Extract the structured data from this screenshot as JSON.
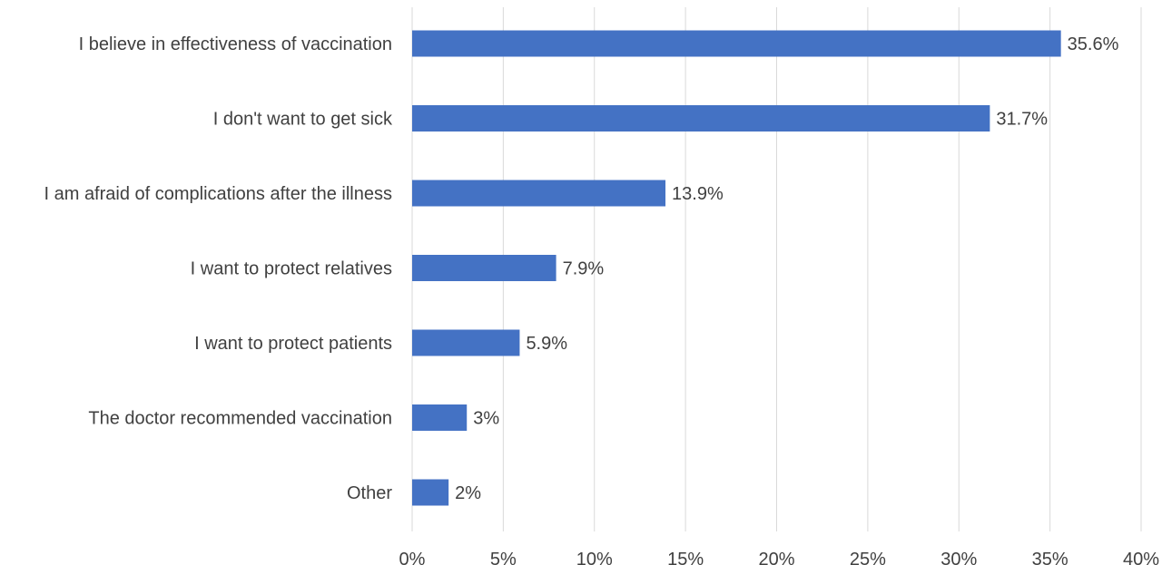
{
  "chart_data": {
    "type": "bar",
    "orientation": "horizontal",
    "categories": [
      "I believe in effectiveness of vaccination",
      "I don't want to get sick",
      "I am afraid of complications after the illness",
      "I want to protect relatives",
      "I want to protect patients",
      "The doctor recommended vaccination",
      "Other"
    ],
    "values": [
      35.6,
      31.7,
      13.9,
      7.9,
      5.9,
      3,
      2
    ],
    "data_labels": [
      "35.6%",
      "31.7%",
      "13.9%",
      "7.9%",
      "5.9%",
      "3%",
      "2%"
    ],
    "x_ticks": [
      "0%",
      "5%",
      "10%",
      "15%",
      "20%",
      "25%",
      "30%",
      "35%",
      "40%"
    ],
    "xlim": [
      0,
      40
    ],
    "grid": "vertical",
    "legend": "none",
    "bar_color": "#4472C4",
    "title": "",
    "xlabel": "",
    "ylabel": ""
  }
}
